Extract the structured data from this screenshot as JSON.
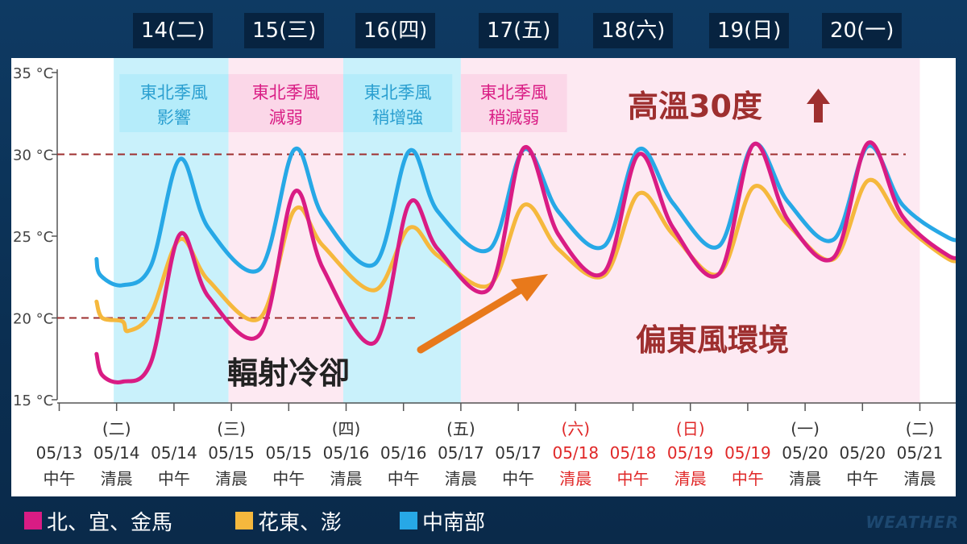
{
  "days": [
    "14(二)",
    "15(三)",
    "16(四)",
    "17(五)",
    "18(六)",
    "19(日)",
    "20(一)"
  ],
  "legend": [
    {
      "label": "北、宜、金馬",
      "color": "#d91c84"
    },
    {
      "label": "花東、澎",
      "color": "#f5b83d"
    },
    {
      "label": "中南部",
      "color": "#27a8e6"
    }
  ],
  "brand": "WEATHER",
  "chart_data": {
    "type": "line",
    "ylim": [
      15,
      35
    ],
    "yticks": [
      "35 °C",
      "30 °C",
      "25 °C",
      "20 °C",
      "15 °C"
    ],
    "x_labels": [
      {
        "weekday": "",
        "date": "05/13",
        "time": "中午",
        "red": false
      },
      {
        "weekday": "(二)",
        "date": "05/14",
        "time": "清晨",
        "red": false
      },
      {
        "weekday": "",
        "date": "05/14",
        "time": "中午",
        "red": false
      },
      {
        "weekday": "(三)",
        "date": "05/15",
        "time": "清晨",
        "red": false
      },
      {
        "weekday": "",
        "date": "05/15",
        "time": "中午",
        "red": false
      },
      {
        "weekday": "(四)",
        "date": "05/16",
        "time": "清晨",
        "red": false
      },
      {
        "weekday": "",
        "date": "05/16",
        "time": "中午",
        "red": false
      },
      {
        "weekday": "(五)",
        "date": "05/17",
        "time": "清晨",
        "red": false
      },
      {
        "weekday": "",
        "date": "05/17",
        "time": "中午",
        "red": false
      },
      {
        "weekday": "(六)",
        "date": "05/18",
        "time": "清晨",
        "red": true
      },
      {
        "weekday": "",
        "date": "05/18",
        "time": "中午",
        "red": true
      },
      {
        "weekday": "(日)",
        "date": "05/19",
        "time": "清晨",
        "red": true
      },
      {
        "weekday": "",
        "date": "05/19",
        "time": "中午",
        "red": true
      },
      {
        "weekday": "(一)",
        "date": "05/20",
        "time": "清晨",
        "red": false
      },
      {
        "weekday": "",
        "date": "05/20",
        "time": "中午",
        "red": false
      },
      {
        "weekday": "(二)",
        "date": "05/21",
        "time": "清晨",
        "red": false
      }
    ],
    "ref_lines": [
      30,
      20
    ],
    "series": [
      {
        "name": "中南部",
        "color": "#27a8e6",
        "points": [
          [
            0.65,
            23.6
          ],
          [
            0.72,
            22.6
          ],
          [
            1.1,
            22
          ],
          [
            1.6,
            23.2
          ],
          [
            2.1,
            29.7
          ],
          [
            2.6,
            25.5
          ],
          [
            3.5,
            23
          ],
          [
            4.1,
            30.3
          ],
          [
            4.6,
            26.2
          ],
          [
            5.5,
            23.3
          ],
          [
            6.1,
            30.2
          ],
          [
            6.6,
            26.5
          ],
          [
            7.5,
            24.2
          ],
          [
            8.1,
            30.3
          ],
          [
            8.7,
            26.5
          ],
          [
            9.5,
            24.4
          ],
          [
            10.1,
            30.3
          ],
          [
            10.7,
            27
          ],
          [
            11.5,
            24.4
          ],
          [
            12.1,
            30.6
          ],
          [
            12.7,
            27.1
          ],
          [
            13.5,
            24.8
          ],
          [
            14.1,
            30.5
          ],
          [
            14.7,
            26.9
          ],
          [
            15.5,
            24.9
          ],
          [
            15.75,
            24.9
          ]
        ]
      },
      {
        "name": "花東、澎",
        "color": "#f5b83d",
        "points": [
          [
            0.65,
            21
          ],
          [
            0.75,
            20
          ],
          [
            1.1,
            19.8
          ],
          [
            1.2,
            19.2
          ],
          [
            1.6,
            20.3
          ],
          [
            2.1,
            24.8
          ],
          [
            2.6,
            22.3
          ],
          [
            3.5,
            20
          ],
          [
            4.1,
            26.6
          ],
          [
            4.6,
            24.4
          ],
          [
            5.5,
            21.7
          ],
          [
            6.1,
            25.5
          ],
          [
            6.6,
            23.8
          ],
          [
            7.5,
            22
          ],
          [
            8.1,
            26.9
          ],
          [
            8.7,
            24.2
          ],
          [
            9.5,
            22.6
          ],
          [
            10.1,
            27.6
          ],
          [
            10.7,
            25.1
          ],
          [
            11.5,
            22.7
          ],
          [
            12.1,
            28
          ],
          [
            12.7,
            25.7
          ],
          [
            13.5,
            23.6
          ],
          [
            14.1,
            28.4
          ],
          [
            14.7,
            25.8
          ],
          [
            15.5,
            23.6
          ],
          [
            15.75,
            23.7
          ]
        ]
      },
      {
        "name": "北、宜、金馬",
        "color": "#d91c84",
        "points": [
          [
            0.65,
            17.8
          ],
          [
            0.75,
            16.5
          ],
          [
            1.1,
            16.1
          ],
          [
            1.6,
            17.3
          ],
          [
            2.1,
            25.1
          ],
          [
            2.6,
            21.3
          ],
          [
            3.5,
            19
          ],
          [
            4.1,
            27.7
          ],
          [
            4.6,
            23
          ],
          [
            5.5,
            18.5
          ],
          [
            6.1,
            27
          ],
          [
            6.6,
            24.2
          ],
          [
            7.5,
            21.8
          ],
          [
            8.1,
            30.4
          ],
          [
            8.7,
            25.1
          ],
          [
            9.5,
            22.8
          ],
          [
            10.1,
            30
          ],
          [
            10.7,
            25.5
          ],
          [
            11.5,
            22.7
          ],
          [
            12.1,
            30.6
          ],
          [
            12.7,
            26
          ],
          [
            13.5,
            23.7
          ],
          [
            14.1,
            30.7
          ],
          [
            14.7,
            26.2
          ],
          [
            15.5,
            23.8
          ],
          [
            15.75,
            23.9
          ]
        ]
      }
    ],
    "bands": [
      {
        "from": 0.95,
        "to": 2.95,
        "color": "#c9f1fb",
        "label": [
          "東北季風",
          "影響"
        ],
        "label_from": 1.05,
        "label_to": 2.95,
        "text_color": "#2a9fd0"
      },
      {
        "from": 2.95,
        "to": 4.95,
        "color": "#fde9f2",
        "label": [
          "東北季風",
          "減弱"
        ],
        "label_from": 2.95,
        "label_to": 4.95,
        "text_color": "#d91c84"
      },
      {
        "from": 4.95,
        "to": 7.0,
        "color": "#c9f1fb",
        "label": [
          "東北季風",
          "稍增強"
        ],
        "label_from": 4.95,
        "label_to": 6.85,
        "text_color": "#2a9fd0"
      },
      {
        "from": 7.0,
        "to": 15.0,
        "color": "#fde9f2",
        "label": [
          "東北季風",
          "稍減弱"
        ],
        "label_from": 7.0,
        "label_to": 8.85,
        "text_color": "#d91c84"
      }
    ],
    "annotations": {
      "high": "高溫30度",
      "rad": "輻射冷卻",
      "east": "偏東風環境"
    }
  }
}
